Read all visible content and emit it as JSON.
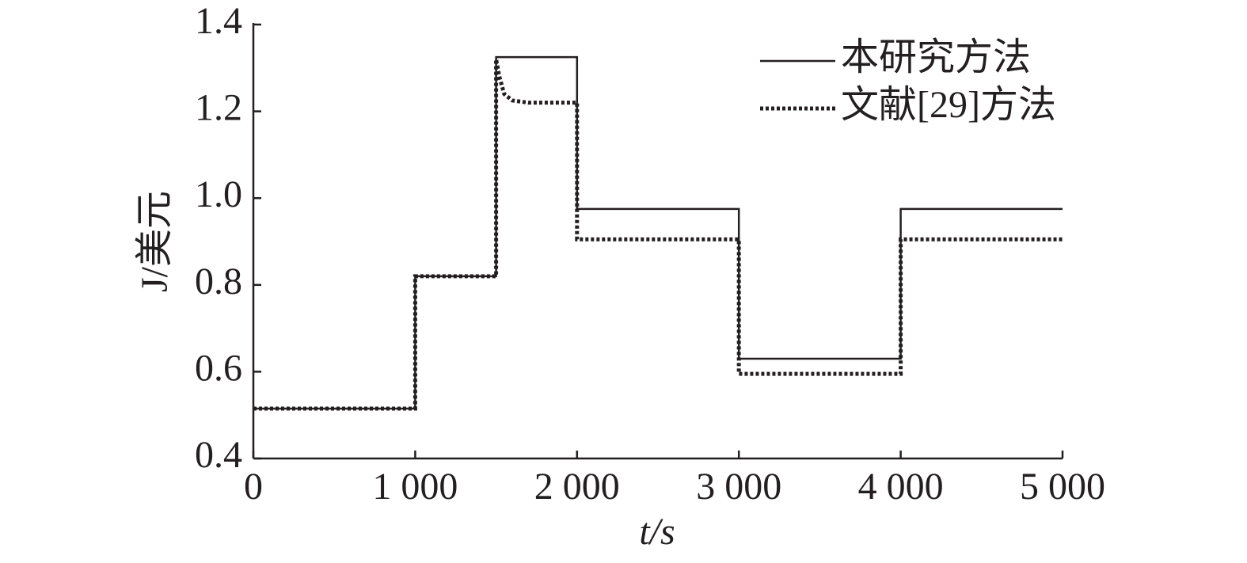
{
  "chart_data": {
    "type": "line",
    "xlabel": "t/s",
    "ylabel": "J/美元",
    "xlim": [
      0,
      5000
    ],
    "xticks": [
      0,
      {
        "value": 1000,
        "label": "1 000"
      },
      {
        "value": 2000,
        "label": "2 000"
      },
      {
        "value": 3000,
        "label": "3 000"
      },
      {
        "value": 4000,
        "label": "4 000"
      },
      {
        "value": 5000,
        "label": "5 000"
      }
    ],
    "ylim": [
      0.4,
      1.4
    ],
    "yticks": [
      0.4,
      0.6,
      0.8,
      {
        "value": 1,
        "label": "1.0"
      },
      1.2,
      1.4
    ],
    "grid": false,
    "legend": "upper right",
    "series": [
      {
        "name": "本研究方法",
        "color": "#231f20",
        "line_style": "solid",
        "x": [
          0,
          1000,
          1000,
          1500,
          1500,
          2000,
          2000,
          3000,
          3000,
          4000,
          4000,
          5000
        ],
        "values": [
          0.515,
          0.515,
          0.82,
          0.82,
          1.325,
          1.325,
          0.975,
          0.975,
          0.63,
          0.63,
          0.975,
          0.975
        ]
      },
      {
        "name": "文献[29]方法",
        "color": "#231f20",
        "line_style": "dotted",
        "x": [
          0,
          1000,
          1000,
          1500,
          1500,
          1520,
          1550,
          1600,
          1700,
          2000,
          2000,
          3000,
          3000,
          4000,
          4000,
          5000
        ],
        "values": [
          0.515,
          0.515,
          0.82,
          0.82,
          1.32,
          1.28,
          1.24,
          1.225,
          1.22,
          1.22,
          0.905,
          0.905,
          0.595,
          0.595,
          0.905,
          0.905
        ]
      }
    ]
  }
}
